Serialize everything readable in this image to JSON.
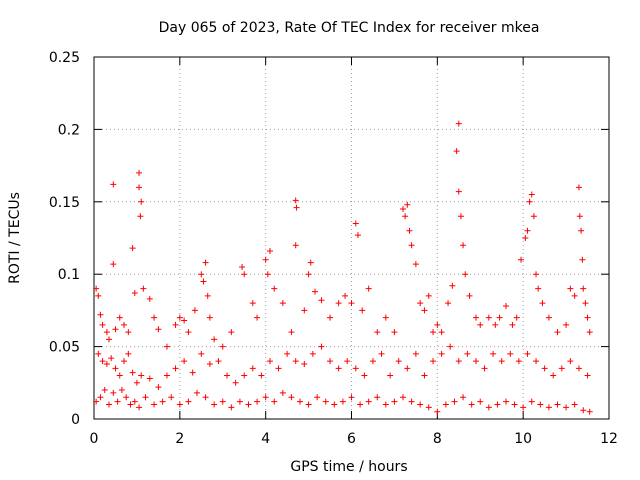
{
  "chart_data": {
    "type": "scatter",
    "title": "Day 065 of 2023, Rate Of TEC Index for receiver mkea",
    "xlabel": "GPS time / hours",
    "ylabel": "ROTI / TECUs",
    "xlim": [
      0,
      12
    ],
    "ylim": [
      0,
      0.25
    ],
    "x_ticks": [
      0,
      2,
      4,
      6,
      8,
      10,
      12
    ],
    "x_tick_labels": [
      "0",
      "2",
      "4",
      "6",
      "8",
      "10",
      "12"
    ],
    "y_ticks": [
      0,
      0.05,
      0.1,
      0.15,
      0.2,
      0.25
    ],
    "y_tick_labels": [
      "0",
      "0.05",
      "0.1",
      "0.15",
      "0.2",
      "0.25"
    ],
    "grid": true,
    "marker": "+",
    "color": "#ff0000",
    "series": [
      {
        "name": "ROTI",
        "points": [
          [
            0.05,
            0.09
          ],
          [
            0.1,
            0.085
          ],
          [
            0.15,
            0.072
          ],
          [
            0.2,
            0.065
          ],
          [
            0.3,
            0.06
          ],
          [
            0.35,
            0.055
          ],
          [
            0.45,
            0.162
          ],
          [
            0.45,
            0.107
          ],
          [
            0.5,
            0.062
          ],
          [
            0.6,
            0.07
          ],
          [
            0.7,
            0.065
          ],
          [
            0.8,
            0.06
          ],
          [
            0.9,
            0.118
          ],
          [
            0.95,
            0.087
          ],
          [
            1.05,
            0.17
          ],
          [
            1.05,
            0.16
          ],
          [
            1.1,
            0.15
          ],
          [
            1.08,
            0.14
          ],
          [
            1.15,
            0.09
          ],
          [
            1.3,
            0.083
          ],
          [
            1.4,
            0.07
          ],
          [
            1.5,
            0.062
          ],
          [
            1.7,
            0.05
          ],
          [
            1.9,
            0.065
          ],
          [
            2.0,
            0.07
          ],
          [
            2.1,
            0.068
          ],
          [
            2.2,
            0.06
          ],
          [
            2.35,
            0.075
          ],
          [
            2.5,
            0.1
          ],
          [
            2.55,
            0.095
          ],
          [
            2.6,
            0.108
          ],
          [
            2.65,
            0.085
          ],
          [
            2.7,
            0.07
          ],
          [
            2.8,
            0.055
          ],
          [
            3.0,
            0.05
          ],
          [
            3.2,
            0.06
          ],
          [
            3.45,
            0.105
          ],
          [
            3.5,
            0.1
          ],
          [
            3.7,
            0.08
          ],
          [
            3.8,
            0.07
          ],
          [
            4.0,
            0.11
          ],
          [
            4.05,
            0.1
          ],
          [
            4.1,
            0.116
          ],
          [
            4.2,
            0.09
          ],
          [
            4.4,
            0.08
          ],
          [
            4.6,
            0.06
          ],
          [
            4.7,
            0.151
          ],
          [
            4.72,
            0.146
          ],
          [
            4.7,
            0.12
          ],
          [
            4.9,
            0.075
          ],
          [
            5.0,
            0.1
          ],
          [
            5.05,
            0.108
          ],
          [
            5.15,
            0.088
          ],
          [
            5.3,
            0.082
          ],
          [
            5.5,
            0.07
          ],
          [
            5.7,
            0.08
          ],
          [
            5.85,
            0.085
          ],
          [
            6.0,
            0.08
          ],
          [
            6.1,
            0.135
          ],
          [
            6.15,
            0.127
          ],
          [
            6.25,
            0.075
          ],
          [
            6.4,
            0.09
          ],
          [
            6.6,
            0.06
          ],
          [
            6.8,
            0.07
          ],
          [
            7.0,
            0.06
          ],
          [
            7.2,
            0.145
          ],
          [
            7.25,
            0.14
          ],
          [
            7.3,
            0.148
          ],
          [
            7.35,
            0.13
          ],
          [
            7.4,
            0.12
          ],
          [
            7.5,
            0.107
          ],
          [
            7.6,
            0.08
          ],
          [
            7.7,
            0.075
          ],
          [
            7.8,
            0.085
          ],
          [
            7.9,
            0.06
          ],
          [
            8.0,
            0.065
          ],
          [
            8.1,
            0.06
          ],
          [
            8.25,
            0.08
          ],
          [
            8.35,
            0.092
          ],
          [
            8.45,
            0.185
          ],
          [
            8.5,
            0.204
          ],
          [
            8.5,
            0.157
          ],
          [
            8.55,
            0.14
          ],
          [
            8.6,
            0.12
          ],
          [
            8.65,
            0.1
          ],
          [
            8.75,
            0.085
          ],
          [
            8.9,
            0.07
          ],
          [
            9.0,
            0.065
          ],
          [
            9.2,
            0.07
          ],
          [
            9.35,
            0.065
          ],
          [
            9.45,
            0.07
          ],
          [
            9.6,
            0.078
          ],
          [
            9.75,
            0.065
          ],
          [
            9.85,
            0.07
          ],
          [
            9.95,
            0.11
          ],
          [
            10.05,
            0.125
          ],
          [
            10.1,
            0.13
          ],
          [
            10.15,
            0.15
          ],
          [
            10.2,
            0.155
          ],
          [
            10.25,
            0.14
          ],
          [
            10.3,
            0.1
          ],
          [
            10.35,
            0.09
          ],
          [
            10.45,
            0.08
          ],
          [
            10.6,
            0.07
          ],
          [
            10.8,
            0.06
          ],
          [
            11.0,
            0.065
          ],
          [
            11.1,
            0.09
          ],
          [
            11.2,
            0.085
          ],
          [
            11.3,
            0.16
          ],
          [
            11.32,
            0.14
          ],
          [
            11.35,
            0.13
          ],
          [
            11.38,
            0.11
          ],
          [
            11.4,
            0.09
          ],
          [
            11.45,
            0.08
          ],
          [
            11.5,
            0.07
          ],
          [
            11.55,
            0.06
          ],
          [
            0.1,
            0.045
          ],
          [
            0.2,
            0.04
          ],
          [
            0.3,
            0.038
          ],
          [
            0.4,
            0.042
          ],
          [
            0.5,
            0.035
          ],
          [
            0.6,
            0.03
          ],
          [
            0.7,
            0.04
          ],
          [
            0.8,
            0.045
          ],
          [
            0.9,
            0.032
          ],
          [
            1.0,
            0.025
          ],
          [
            1.1,
            0.03
          ],
          [
            1.3,
            0.028
          ],
          [
            1.5,
            0.022
          ],
          [
            1.7,
            0.03
          ],
          [
            1.9,
            0.035
          ],
          [
            2.1,
            0.04
          ],
          [
            2.3,
            0.032
          ],
          [
            2.5,
            0.045
          ],
          [
            2.7,
            0.038
          ],
          [
            2.9,
            0.04
          ],
          [
            3.1,
            0.03
          ],
          [
            3.3,
            0.025
          ],
          [
            3.5,
            0.03
          ],
          [
            3.7,
            0.035
          ],
          [
            3.9,
            0.03
          ],
          [
            4.1,
            0.04
          ],
          [
            4.3,
            0.035
          ],
          [
            4.5,
            0.045
          ],
          [
            4.7,
            0.04
          ],
          [
            4.9,
            0.038
          ],
          [
            5.1,
            0.045
          ],
          [
            5.3,
            0.05
          ],
          [
            5.5,
            0.04
          ],
          [
            5.7,
            0.035
          ],
          [
            5.9,
            0.04
          ],
          [
            6.1,
            0.035
          ],
          [
            6.3,
            0.03
          ],
          [
            6.5,
            0.04
          ],
          [
            6.7,
            0.045
          ],
          [
            6.9,
            0.03
          ],
          [
            7.1,
            0.04
          ],
          [
            7.3,
            0.035
          ],
          [
            7.5,
            0.045
          ],
          [
            7.7,
            0.03
          ],
          [
            7.9,
            0.04
          ],
          [
            8.1,
            0.045
          ],
          [
            8.3,
            0.05
          ],
          [
            8.5,
            0.04
          ],
          [
            8.7,
            0.045
          ],
          [
            8.9,
            0.04
          ],
          [
            9.1,
            0.035
          ],
          [
            9.3,
            0.045
          ],
          [
            9.5,
            0.04
          ],
          [
            9.7,
            0.045
          ],
          [
            9.9,
            0.04
          ],
          [
            10.1,
            0.045
          ],
          [
            10.3,
            0.04
          ],
          [
            10.5,
            0.035
          ],
          [
            10.7,
            0.03
          ],
          [
            10.9,
            0.035
          ],
          [
            11.1,
            0.04
          ],
          [
            11.3,
            0.035
          ],
          [
            11.5,
            0.03
          ],
          [
            0.05,
            0.012
          ],
          [
            0.15,
            0.015
          ],
          [
            0.25,
            0.02
          ],
          [
            0.35,
            0.01
          ],
          [
            0.45,
            0.018
          ],
          [
            0.55,
            0.012
          ],
          [
            0.65,
            0.02
          ],
          [
            0.75,
            0.015
          ],
          [
            0.85,
            0.01
          ],
          [
            0.95,
            0.012
          ],
          [
            1.05,
            0.008
          ],
          [
            1.2,
            0.015
          ],
          [
            1.4,
            0.01
          ],
          [
            1.6,
            0.012
          ],
          [
            1.8,
            0.015
          ],
          [
            2.0,
            0.01
          ],
          [
            2.2,
            0.012
          ],
          [
            2.4,
            0.018
          ],
          [
            2.6,
            0.015
          ],
          [
            2.8,
            0.01
          ],
          [
            3.0,
            0.012
          ],
          [
            3.2,
            0.008
          ],
          [
            3.4,
            0.012
          ],
          [
            3.6,
            0.01
          ],
          [
            3.8,
            0.012
          ],
          [
            4.0,
            0.015
          ],
          [
            4.2,
            0.012
          ],
          [
            4.4,
            0.018
          ],
          [
            4.6,
            0.015
          ],
          [
            4.8,
            0.012
          ],
          [
            5.0,
            0.01
          ],
          [
            5.2,
            0.015
          ],
          [
            5.4,
            0.012
          ],
          [
            5.6,
            0.01
          ],
          [
            5.8,
            0.012
          ],
          [
            6.0,
            0.015
          ],
          [
            6.2,
            0.01
          ],
          [
            6.4,
            0.012
          ],
          [
            6.6,
            0.015
          ],
          [
            6.8,
            0.01
          ],
          [
            7.0,
            0.012
          ],
          [
            7.2,
            0.015
          ],
          [
            7.4,
            0.012
          ],
          [
            7.6,
            0.01
          ],
          [
            7.8,
            0.008
          ],
          [
            8.0,
            0.005
          ],
          [
            8.2,
            0.01
          ],
          [
            8.4,
            0.012
          ],
          [
            8.6,
            0.015
          ],
          [
            8.8,
            0.01
          ],
          [
            9.0,
            0.012
          ],
          [
            9.2,
            0.008
          ],
          [
            9.4,
            0.01
          ],
          [
            9.6,
            0.012
          ],
          [
            9.8,
            0.01
          ],
          [
            10.0,
            0.008
          ],
          [
            10.2,
            0.012
          ],
          [
            10.4,
            0.01
          ],
          [
            10.6,
            0.008
          ],
          [
            10.8,
            0.01
          ],
          [
            11.0,
            0.008
          ],
          [
            11.2,
            0.01
          ],
          [
            11.4,
            0.006
          ],
          [
            11.55,
            0.005
          ]
        ]
      }
    ]
  }
}
